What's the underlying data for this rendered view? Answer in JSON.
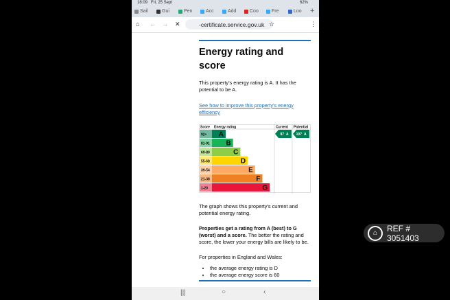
{
  "status_bar": {
    "time": "18:09",
    "date": "Fri, 25 Sept",
    "battery": "62%"
  },
  "tabs": [
    "Sail",
    "Gui",
    "Pen",
    "Acc",
    "Add",
    "Coo",
    "Fre",
    "Loo"
  ],
  "url": "-certificate.service.gov.uk",
  "page": {
    "heading": "Energy rating and score",
    "intro": "This property's energy rating is A. It has the potential to be A.",
    "link": "See how to improve this property's energy efficiency",
    "graph": {
      "headers": [
        "Score",
        "Energy rating",
        "Current",
        "Potential"
      ],
      "bands": [
        {
          "score": "92+",
          "letter": "A",
          "color": "#008054"
        },
        {
          "score": "81-91",
          "letter": "B",
          "color": "#19b459"
        },
        {
          "score": "69-80",
          "letter": "C",
          "color": "#8dce46"
        },
        {
          "score": "55-68",
          "letter": "D",
          "color": "#ffd500"
        },
        {
          "score": "39-54",
          "letter": "E",
          "color": "#fcaa65"
        },
        {
          "score": "21-38",
          "letter": "F",
          "color": "#ef8023"
        },
        {
          "score": "1-20",
          "letter": "G",
          "color": "#e9153b"
        }
      ],
      "current": {
        "value": 97,
        "letter": "A"
      },
      "potential": {
        "value": 107,
        "letter": "A"
      }
    },
    "graph_note": "The graph shows this property's current and potential energy rating.",
    "rating_bold": "Properties get a rating from A (best) to G (worst) and a score.",
    "rating_rest": "The better the rating and score, the lower your energy bills are likely to be.",
    "region": "For properties in England and Wales:",
    "bullets": [
      "the average energy rating is D",
      "the average energy score is 60"
    ]
  },
  "watermark": "REF # 3051403"
}
